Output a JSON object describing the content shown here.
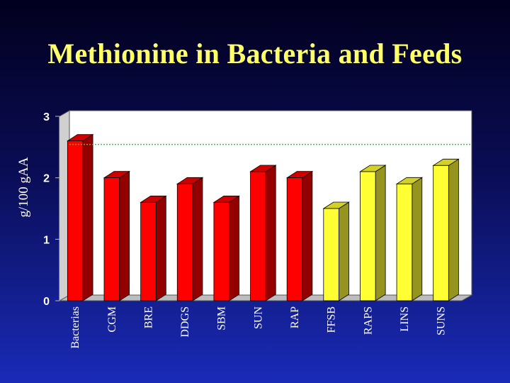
{
  "chart_data": {
    "type": "bar",
    "title": "Methionine in Bacteria and Feeds",
    "xlabel": "",
    "ylabel": "g/100 gAA",
    "ylim": [
      0,
      3
    ],
    "yticks": [
      "0",
      "1",
      "2",
      "3"
    ],
    "categories": [
      "Bacterias",
      "CGM",
      "BRE",
      "DDGS",
      "SBM",
      "SUN",
      "RAP",
      "FFSB",
      "RAPS",
      "LINS",
      "SUNS"
    ],
    "values": [
      2.6,
      2.0,
      1.6,
      1.9,
      1.6,
      2.1,
      2.0,
      1.5,
      2.1,
      1.9,
      2.2
    ],
    "bar_colors": [
      "#ff0000",
      "#ff0000",
      "#ff0000",
      "#ff0000",
      "#ff0000",
      "#ff0000",
      "#ff0000",
      "#ffff33",
      "#ffff33",
      "#ffff33",
      "#ffff33"
    ],
    "reference_line": 2.45,
    "reference_line_color": "#33cc33",
    "plot_background": "#ffffff",
    "grid": false,
    "legend": "none",
    "render_style": "3d-bars"
  }
}
